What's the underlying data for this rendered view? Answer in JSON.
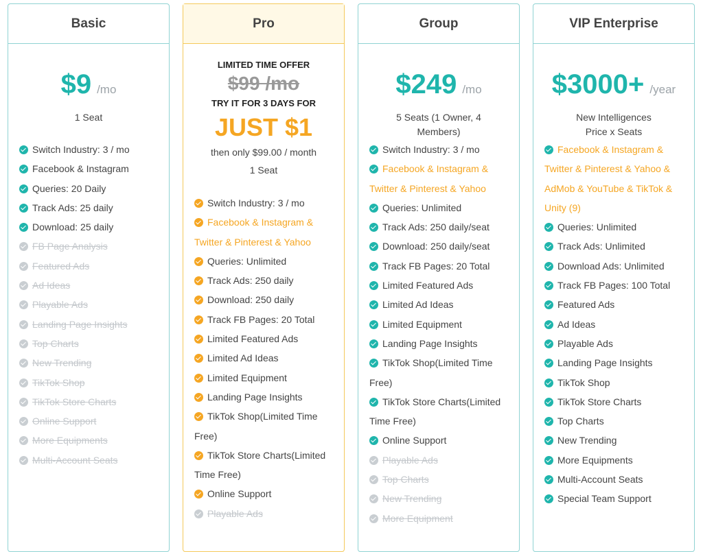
{
  "plans": [
    {
      "name": "Basic",
      "price": "$9",
      "unit": "/mo",
      "seats": [
        "1 Seat"
      ],
      "features": [
        {
          "text": "Switch Industry: 3 / mo",
          "style": "normal",
          "dot": "teal"
        },
        {
          "text": "Facebook & Instagram",
          "style": "normal",
          "dot": "teal"
        },
        {
          "text": "Queries: 20 Daily",
          "style": "normal",
          "dot": "teal"
        },
        {
          "text": "Track Ads: 25 daily",
          "style": "normal",
          "dot": "teal"
        },
        {
          "text": "Download: 25 daily",
          "style": "normal",
          "dot": "teal"
        },
        {
          "text": "FB Page Analysis",
          "style": "off",
          "dot": "gray"
        },
        {
          "text": "Featured Ads",
          "style": "off",
          "dot": "gray"
        },
        {
          "text": "Ad Ideas",
          "style": "off",
          "dot": "gray"
        },
        {
          "text": "Playable Ads",
          "style": "off",
          "dot": "gray"
        },
        {
          "text": "Landing Page Insights",
          "style": "off",
          "dot": "gray"
        },
        {
          "text": "Top Charts",
          "style": "off",
          "dot": "gray"
        },
        {
          "text": "New Trending",
          "style": "off",
          "dot": "gray"
        },
        {
          "text": "TikTok Shop",
          "style": "off",
          "dot": "gray"
        },
        {
          "text": "TikTok Store Charts",
          "style": "off",
          "dot": "gray"
        },
        {
          "text": "Online Support",
          "style": "off",
          "dot": "gray"
        },
        {
          "text": "More Equipments",
          "style": "off",
          "dot": "gray"
        },
        {
          "text": "Multi-Account Seats",
          "style": "off",
          "dot": "gray"
        }
      ]
    },
    {
      "name": "Pro",
      "offer_title": "LIMITED TIME OFFER",
      "old_price": "$99 /mo",
      "try_text": "TRY IT FOR 3 DAYS FOR",
      "just_text": "JUST $1",
      "then_text": "then only $99.00 / month",
      "seats": [
        "1 Seat"
      ],
      "features": [
        {
          "text": "Switch Industry: 3 / mo",
          "style": "normal",
          "dot": "orange"
        },
        {
          "text": "Facebook & Instagram & Twitter & Pinterest & Yahoo",
          "style": "orange",
          "dot": "orange"
        },
        {
          "text": "Queries: Unlimited",
          "style": "normal",
          "dot": "orange"
        },
        {
          "text": "Track Ads: 250 daily",
          "style": "normal",
          "dot": "orange"
        },
        {
          "text": "Download: 250 daily",
          "style": "normal",
          "dot": "orange"
        },
        {
          "text": "Track FB Pages: 20 Total",
          "style": "normal",
          "dot": "orange"
        },
        {
          "text": "Limited Featured Ads",
          "style": "normal",
          "dot": "orange"
        },
        {
          "text": "Limited Ad Ideas",
          "style": "normal",
          "dot": "orange"
        },
        {
          "text": "Limited Equipment",
          "style": "normal",
          "dot": "orange"
        },
        {
          "text": "Landing Page Insights",
          "style": "normal",
          "dot": "orange"
        },
        {
          "text": "TikTok Shop(Limited Time Free)",
          "style": "normal",
          "dot": "orange"
        },
        {
          "text": "TikTok Store Charts(Limited Time Free)",
          "style": "normal",
          "dot": "orange"
        },
        {
          "text": "Online Support",
          "style": "normal",
          "dot": "orange"
        },
        {
          "text": "Playable Ads",
          "style": "off",
          "dot": "gray"
        }
      ]
    },
    {
      "name": "Group",
      "price": "$249",
      "unit": "/mo",
      "seats": [
        "5 Seats (1 Owner, 4",
        "Members)"
      ],
      "features": [
        {
          "text": "Switch Industry: 3 / mo",
          "style": "normal",
          "dot": "teal"
        },
        {
          "text": "Facebook & Instagram & Twitter & Pinterest & Yahoo",
          "style": "orange",
          "dot": "teal"
        },
        {
          "text": "Queries: Unlimited",
          "style": "normal",
          "dot": "teal"
        },
        {
          "text": "Track Ads: 250 daily/seat",
          "style": "normal",
          "dot": "teal"
        },
        {
          "text": "Download: 250 daily/seat",
          "style": "normal",
          "dot": "teal"
        },
        {
          "text": "Track FB Pages: 20 Total",
          "style": "normal",
          "dot": "teal"
        },
        {
          "text": "Limited Featured Ads",
          "style": "normal",
          "dot": "teal"
        },
        {
          "text": "Limited Ad Ideas",
          "style": "normal",
          "dot": "teal"
        },
        {
          "text": "Limited Equipment",
          "style": "normal",
          "dot": "teal"
        },
        {
          "text": "Landing Page Insights",
          "style": "normal",
          "dot": "teal"
        },
        {
          "text": "TikTok Shop(Limited Time Free)",
          "style": "normal",
          "dot": "teal"
        },
        {
          "text": "TikTok Store Charts(Limited Time Free)",
          "style": "normal",
          "dot": "teal"
        },
        {
          "text": "Online Support",
          "style": "normal",
          "dot": "teal"
        },
        {
          "text": "Playable Ads",
          "style": "off",
          "dot": "gray"
        },
        {
          "text": "Top Charts",
          "style": "off",
          "dot": "gray"
        },
        {
          "text": "New Trending",
          "style": "off",
          "dot": "gray"
        },
        {
          "text": "More Equipment",
          "style": "off",
          "dot": "gray"
        }
      ]
    },
    {
      "name": "VIP Enterprise",
      "price": "$3000+",
      "unit": "/year",
      "seats": [
        "New Intelligences",
        "Price x Seats"
      ],
      "features": [
        {
          "text": "Facebook & Instagram & Twitter & Pinterest & Yahoo & AdMob & YouTube & TikTok & Unity  (9)",
          "style": "orange",
          "dot": "teal"
        },
        {
          "text": "Queries: Unlimited",
          "style": "normal",
          "dot": "teal"
        },
        {
          "text": "Track Ads: Unlimited",
          "style": "normal",
          "dot": "teal"
        },
        {
          "text": "Download Ads: Unlimited",
          "style": "normal",
          "dot": "teal"
        },
        {
          "text": "Track FB Pages: 100 Total",
          "style": "normal",
          "dot": "teal"
        },
        {
          "text": "Featured Ads",
          "style": "normal",
          "dot": "teal"
        },
        {
          "text": "Ad Ideas",
          "style": "normal",
          "dot": "teal"
        },
        {
          "text": "Playable Ads",
          "style": "normal",
          "dot": "teal"
        },
        {
          "text": "Landing Page Insights",
          "style": "normal",
          "dot": "teal"
        },
        {
          "text": "TikTok Shop",
          "style": "normal",
          "dot": "teal"
        },
        {
          "text": "TikTok Store Charts",
          "style": "normal",
          "dot": "teal"
        },
        {
          "text": "Top Charts",
          "style": "normal",
          "dot": "teal"
        },
        {
          "text": "New Trending",
          "style": "normal",
          "dot": "teal"
        },
        {
          "text": "More Equipments",
          "style": "normal",
          "dot": "teal"
        },
        {
          "text": "Multi-Account Seats",
          "style": "normal",
          "dot": "teal"
        },
        {
          "text": "Special Team Support",
          "style": "normal",
          "dot": "teal"
        }
      ]
    }
  ],
  "colors": {
    "teal": "#1fb5ac",
    "orange": "#f5a623",
    "gray": "#c9ced2",
    "pro_border": "#f4c95a",
    "card_border": "#8fd3d3"
  }
}
